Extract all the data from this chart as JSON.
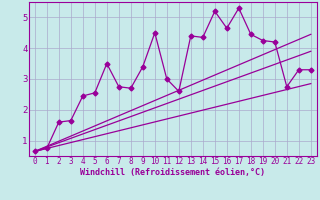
{
  "bg_color": "#c8eaea",
  "grid_color": "#aaaacc",
  "line_color": "#990099",
  "xlabel": "Windchill (Refroidissement éolien,°C)",
  "xlim": [
    -0.5,
    23.5
  ],
  "ylim": [
    0.5,
    5.5
  ],
  "yticks": [
    1,
    2,
    3,
    4,
    5
  ],
  "xticks": [
    0,
    1,
    2,
    3,
    4,
    5,
    6,
    7,
    8,
    9,
    10,
    11,
    12,
    13,
    14,
    15,
    16,
    17,
    18,
    19,
    20,
    21,
    22,
    23
  ],
  "scatter_x": [
    0,
    1,
    2,
    3,
    4,
    5,
    6,
    7,
    8,
    9,
    10,
    11,
    12,
    13,
    14,
    15,
    16,
    17,
    18,
    19,
    20,
    21,
    22,
    23
  ],
  "scatter_y": [
    0.65,
    0.75,
    1.6,
    1.65,
    2.45,
    2.55,
    3.5,
    2.75,
    2.7,
    3.4,
    4.5,
    3.0,
    2.6,
    4.4,
    4.35,
    5.2,
    4.65,
    5.3,
    4.45,
    4.25,
    4.2,
    2.75,
    3.3,
    3.3
  ],
  "line1_x": [
    0,
    23
  ],
  "line1_y": [
    0.65,
    4.45
  ],
  "line2_x": [
    0,
    23
  ],
  "line2_y": [
    0.65,
    3.9
  ],
  "line3_x": [
    0,
    23
  ],
  "line3_y": [
    0.65,
    2.85
  ],
  "marker_size": 2.5,
  "line_width": 0.9,
  "font_size": 6,
  "tick_font_size": 5.5
}
